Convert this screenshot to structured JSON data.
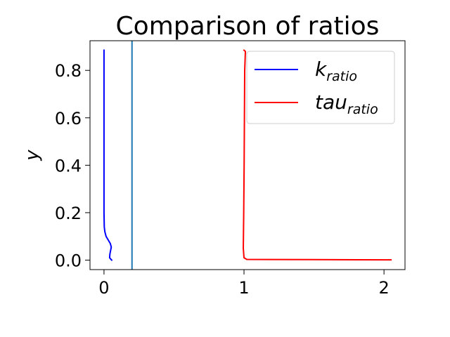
{
  "chart_data": {
    "type": "line",
    "title": "Comparison of ratios",
    "xlabel": "",
    "ylabel": "y",
    "xlim": [
      -0.1,
      2.15
    ],
    "ylim": [
      -0.04,
      0.925
    ],
    "xticks": [
      0,
      1,
      2
    ],
    "yticks": [
      0.0,
      0.2,
      0.4,
      0.6,
      0.8
    ],
    "xtick_labels": [
      "0",
      "1",
      "2"
    ],
    "ytick_labels": [
      "0.0",
      "0.2",
      "0.4",
      "0.6",
      "0.8"
    ],
    "grid": false,
    "legend_position": "top-right",
    "vline": {
      "x": 0.2,
      "color": "#1f77b4"
    },
    "series": [
      {
        "name": "k",
        "name_sub": "ratio",
        "color": "#0000ff",
        "x": [
          0.0,
          0.0,
          0.0,
          0.0,
          0.0,
          0.002,
          0.006,
          0.015,
          0.03,
          0.045,
          0.052,
          0.047,
          0.042,
          0.04,
          0.05,
          0.055
        ],
        "y": [
          0.885,
          0.8,
          0.6,
          0.4,
          0.2,
          0.14,
          0.12,
          0.1,
          0.085,
          0.07,
          0.055,
          0.04,
          0.025,
          0.01,
          0.003,
          0.0
        ]
      },
      {
        "name": "tau",
        "name_sub": "ratio",
        "color": "#ff0000",
        "x": [
          1.0,
          1.01,
          1.005,
          1.003,
          1.001,
          0.998,
          0.996,
          0.995,
          1.0,
          1.02,
          1.5,
          2.05
        ],
        "y": [
          0.885,
          0.88,
          0.8,
          0.6,
          0.4,
          0.2,
          0.1,
          0.05,
          0.01,
          0.003,
          0.002,
          0.001
        ]
      }
    ]
  }
}
